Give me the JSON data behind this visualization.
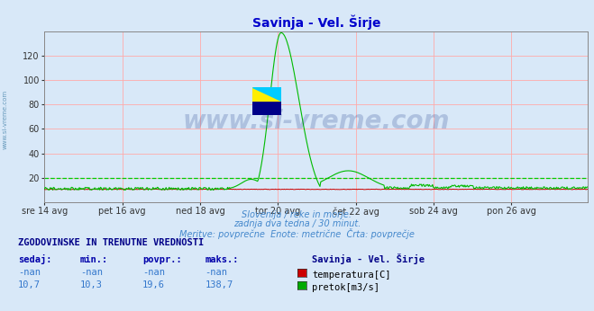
{
  "title": "Savinja - Vel. Širje",
  "title_color": "#0000cc",
  "bg_color": "#d8e8f8",
  "plot_bg_color": "#d8e8f8",
  "x_labels": [
    "sre 14 avg",
    "pet 16 avg",
    "ned 18 avg",
    "tor 20 avg",
    "čet 22 avg",
    "sob 24 avg",
    "pon 26 avg"
  ],
  "x_ticks_pos": [
    0,
    96,
    192,
    288,
    384,
    480,
    576
  ],
  "total_points": 672,
  "ylim": [
    0,
    140
  ],
  "yticks": [
    20,
    40,
    60,
    80,
    100,
    120
  ],
  "grid_color": "#ffaaaa",
  "axis_color": "#888888",
  "temp_color": "#cc0000",
  "flow_color": "#00bb00",
  "dashed_line_color": "#00cc00",
  "dashed_line_y": 19.6,
  "flow_baseline": 10.7,
  "flow_peak_y": 138.7,
  "watermark": "www.si-vreme.com",
  "watermark_color": "#1a3a8a",
  "watermark_alpha": 0.22,
  "subtitle1": "Slovenija / reke in morje.",
  "subtitle2": "zadnja dva tedna / 30 minut.",
  "subtitle3": "Meritve: povprečne  Enote: metrične  Črta: povprečje",
  "subtitle_color": "#4488cc",
  "left_label": "www.si-vreme.com",
  "left_label_color": "#6699bb",
  "table_header": "ZGODOVINSKE IN TRENUTNE VREDNOSTI",
  "table_header_color": "#000088",
  "col_headers": [
    "sedaj:",
    "min.:",
    "povpr.:",
    "maks.:"
  ],
  "col_header_color": "#0000aa",
  "row1_values": [
    "-nan",
    "-nan",
    "-nan",
    "-nan"
  ],
  "row2_values": [
    "10,7",
    "10,3",
    "19,6",
    "138,7"
  ],
  "row_color": "#3377cc",
  "legend_title": "Savinja - Vel. Širje",
  "legend_title_color": "#000088",
  "legend_items": [
    {
      "label": "temperatura[C]",
      "color": "#cc0000"
    },
    {
      "label": "pretok[m3/s]",
      "color": "#00aa00"
    }
  ]
}
